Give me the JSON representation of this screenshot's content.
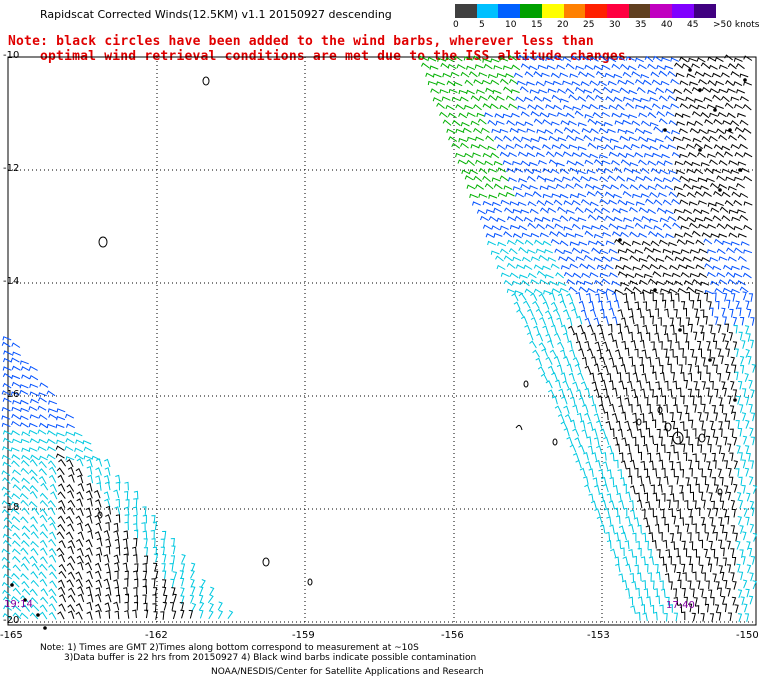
{
  "title": "Rapidscat Corrected Winds(12.5KM) v1.1 20150927 descending",
  "note": [
    "Note: black circles have been added to the wind barbs, wherever less than",
    "optimal wind retrieval conditions are met due to the ISS altitude changes."
  ],
  "legend": {
    "colors": [
      "#404040",
      "#00c0ff",
      "#0060ff",
      "#00a000",
      "#ffff00",
      "#ff8000",
      "#ff2000",
      "#ff0040",
      "#604020",
      "#c000c0",
      "#8000ff",
      "#400080"
    ],
    "labels": [
      "0",
      "5",
      "10",
      "15",
      "20",
      "25",
      "30",
      "35",
      "40",
      "45",
      ">50 knots"
    ]
  },
  "lat_labels": [
    "-10",
    "-12",
    "-14",
    "-16",
    "-18",
    "-20"
  ],
  "lon_labels": [
    "-165",
    "-162",
    "-159",
    "-156",
    "-153",
    "-150"
  ],
  "times": {
    "left": "19:14",
    "right": "17:40"
  },
  "footer": {
    "line1": "Note: 1) Times are GMT 2)Times along bottom correspond to measurement at ~10S",
    "line2": "3)Data buffer is 22 hrs from 20150927 4) Black wind barbs indicate possible contamination",
    "line3": "NOAA/NESDIS/Center for Satellite Applications and Research"
  },
  "wind_colors": {
    "calm": "#000000",
    "light": "#00c8e0",
    "moderate": "#0050ff",
    "fresh": "#00b000"
  }
}
